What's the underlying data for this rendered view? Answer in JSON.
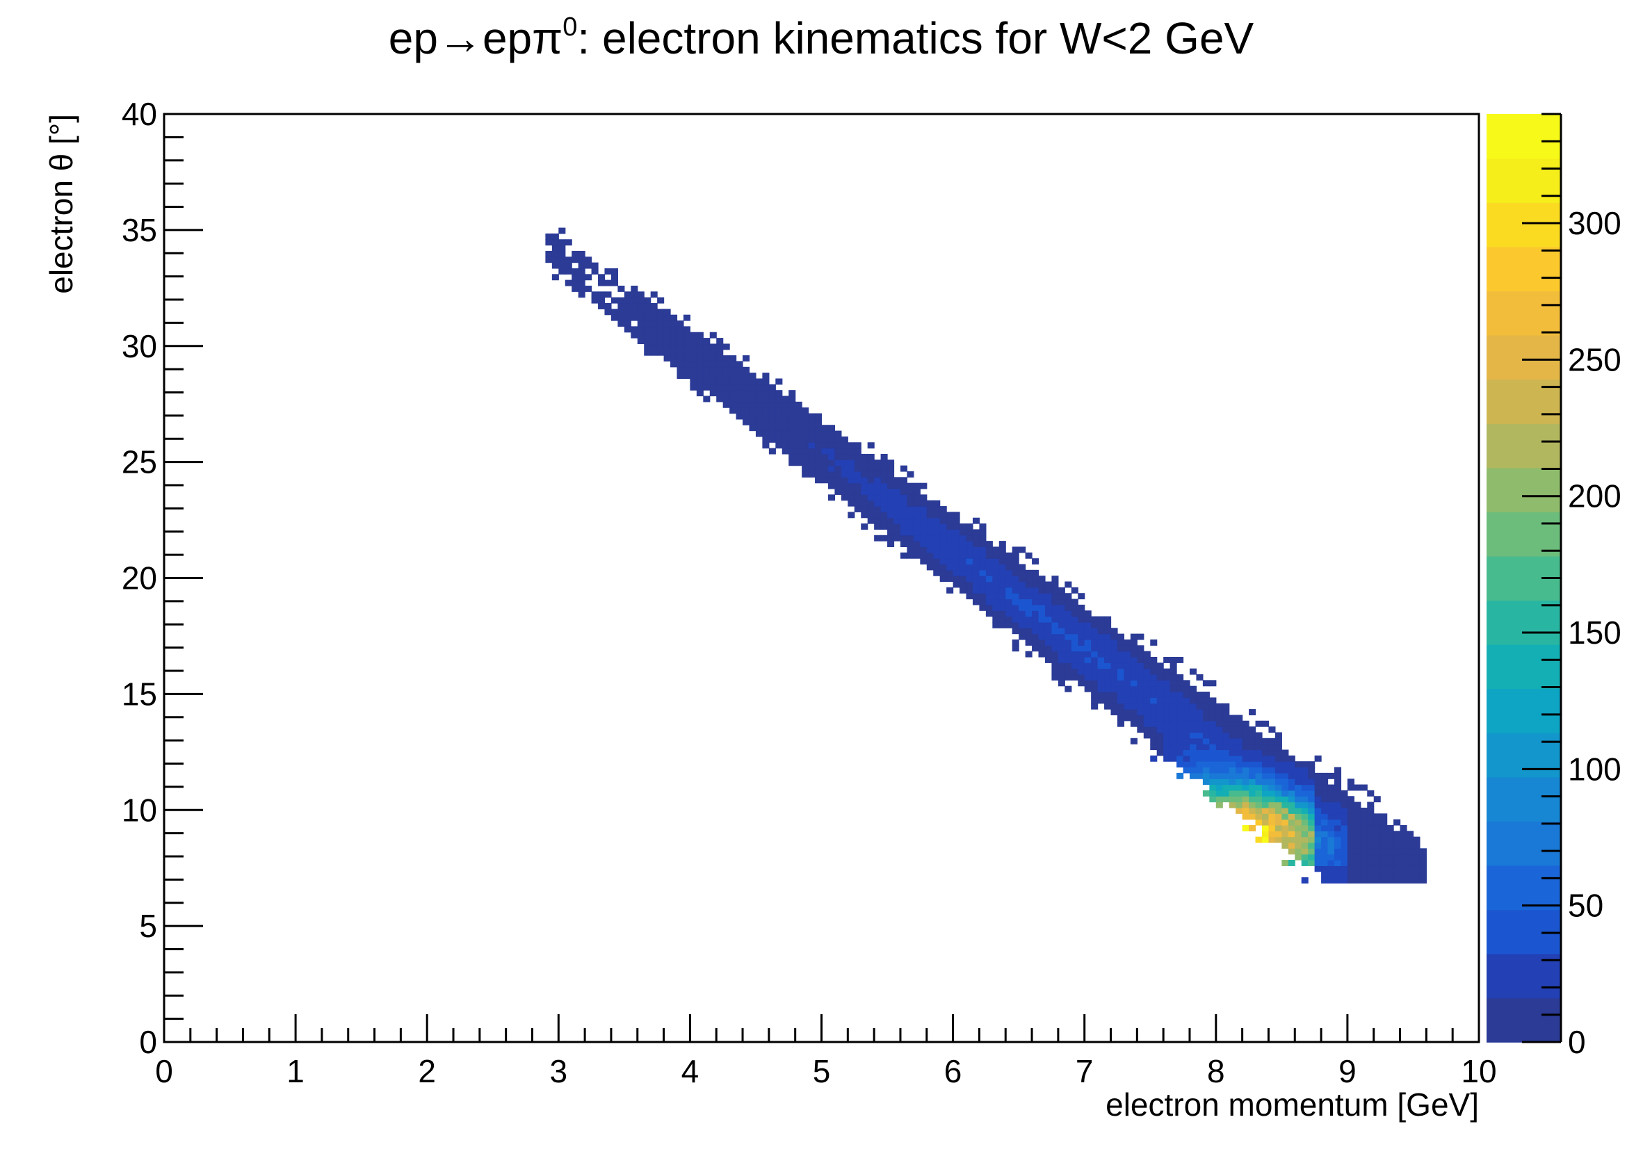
{
  "chart_data": {
    "type": "heatmap",
    "title_main": "ep→epπ",
    "title_sup": "0",
    "title_rest": ": electron kinematics for W<2 GeV",
    "xlabel": "electron momentum [GeV]",
    "ylabel": "electron θ [°]",
    "xlim": [
      0,
      10
    ],
    "ylim": [
      0,
      40
    ],
    "x_ticks": [
      "0",
      "1",
      "2",
      "3",
      "4",
      "5",
      "6",
      "7",
      "8",
      "9",
      "10"
    ],
    "y_ticks": [
      "0",
      "5",
      "10",
      "15",
      "20",
      "25",
      "30",
      "35",
      "40"
    ],
    "z_range": [
      0,
      340
    ],
    "z_ticks": [
      "0",
      "50",
      "100",
      "150",
      "200",
      "250",
      "300"
    ],
    "colorbar_steps": [
      "#2b3b96",
      "#2340b4",
      "#1b56d0",
      "#1a66d8",
      "#1a78d6",
      "#1787d3",
      "#1296cc",
      "#0ea4c4",
      "#14afb4",
      "#28b6a2",
      "#48bb8e",
      "#6cbc7c",
      "#8fbb6c",
      "#b0b75e",
      "#cdb651",
      "#e3b647",
      "#f2bd3b",
      "#fbc92d",
      "#fadb22",
      "#f5ee1a",
      "#f7fa18"
    ],
    "band": {
      "peak_momentum": 8.0,
      "peak_theta": 8.8,
      "peak_counts": 335,
      "centerline_momentum_start": 3.1,
      "centerline_theta_start": 33.5,
      "centerline_momentum_end": 9.3,
      "centerline_theta_end": 7.2,
      "min_theta": 6.8
    },
    "grid": false
  }
}
